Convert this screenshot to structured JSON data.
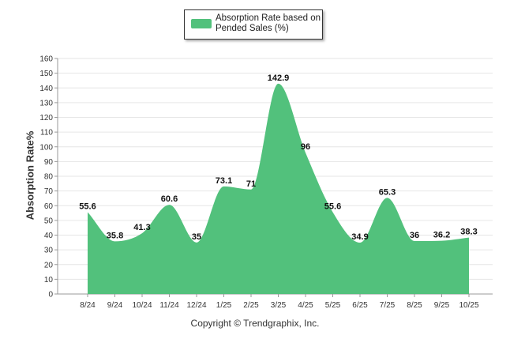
{
  "chart_data": {
    "type": "area",
    "categories": [
      "8/24",
      "9/24",
      "10/24",
      "11/24",
      "12/24",
      "1/25",
      "2/25",
      "3/25",
      "4/25",
      "5/25",
      "6/25",
      "7/25",
      "8/25",
      "9/25",
      "10/25"
    ],
    "series": [
      {
        "name": "Absorption Rate based on Pended Sales (%)",
        "values": [
          55.6,
          35.8,
          41.3,
          60.6,
          35,
          73.1,
          71,
          142.9,
          96,
          55.6,
          34.9,
          65.3,
          36,
          36.2,
          38.3
        ],
        "data_labels": [
          "55.6",
          "35.8",
          "41.3",
          "60.6",
          "35",
          "73.1",
          "71",
          "142.9",
          "96",
          "55.6",
          "34.9",
          "65.3",
          "36",
          "36.2",
          "38.3"
        ],
        "color": "#52c17c"
      }
    ],
    "ylabel": "Absorption Rate%",
    "xlabel": "",
    "ylim": [
      0,
      160
    ],
    "yticks": [
      0,
      10,
      20,
      30,
      40,
      50,
      60,
      70,
      80,
      90,
      100,
      110,
      120,
      130,
      140,
      150,
      160
    ],
    "grid": true,
    "legend_position": "top-center"
  },
  "legend": {
    "label": "Absorption Rate based on Pended Sales (%)",
    "color": "#52c17c"
  },
  "footer": {
    "text": "Copyright © Trendgraphix, Inc."
  }
}
